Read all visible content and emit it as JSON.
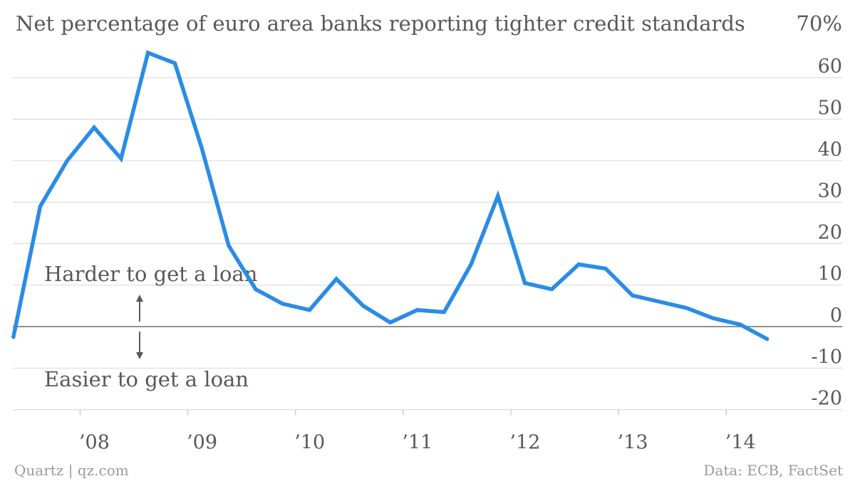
{
  "chart_data": {
    "type": "line",
    "title": "Net percentage of euro area banks reporting tighter credit standards",
    "ylim": [
      -20,
      70
    ],
    "y_ticks": [
      70,
      60,
      50,
      40,
      30,
      20,
      10,
      0,
      -10,
      -20
    ],
    "y_tick_labels": [
      "70%",
      "60",
      "50",
      "40",
      "30",
      "20",
      "10",
      "0",
      "-10",
      "-20"
    ],
    "x_tick_labels": [
      "’08",
      "’09",
      "’10",
      "’11",
      "’12",
      "’13",
      "’14"
    ],
    "x_tick_years": [
      2008,
      2009,
      2010,
      2011,
      2012,
      2013,
      2014
    ],
    "xlim": [
      2007.375,
      2014.68
    ],
    "grid": true,
    "series": [
      {
        "color": "#2a8ce6",
        "x": [
          2007.38,
          2007.63,
          2007.88,
          2008.13,
          2008.38,
          2008.63,
          2008.88,
          2009.13,
          2009.38,
          2009.63,
          2009.88,
          2010.13,
          2010.38,
          2010.63,
          2010.88,
          2011.13,
          2011.38,
          2011.63,
          2011.88,
          2012.13,
          2012.38,
          2012.63,
          2012.88,
          2013.13,
          2013.38,
          2013.63,
          2013.88,
          2014.13,
          2014.38
        ],
        "values": [
          -2.5,
          29,
          40,
          48,
          40.5,
          66,
          63.5,
          43,
          19.5,
          9,
          5.5,
          4,
          11.5,
          5,
          1,
          4,
          3.5,
          15,
          31.5,
          10.5,
          9,
          15,
          14,
          7.5,
          6,
          4.5,
          2,
          0.5,
          -3
        ]
      }
    ],
    "annotations": {
      "up": "Harder to get a loan",
      "down": "Easier to get a loan"
    }
  },
  "footer": {
    "left": "Quartz | qz.com",
    "right": "Data: ECB, FactSet"
  }
}
